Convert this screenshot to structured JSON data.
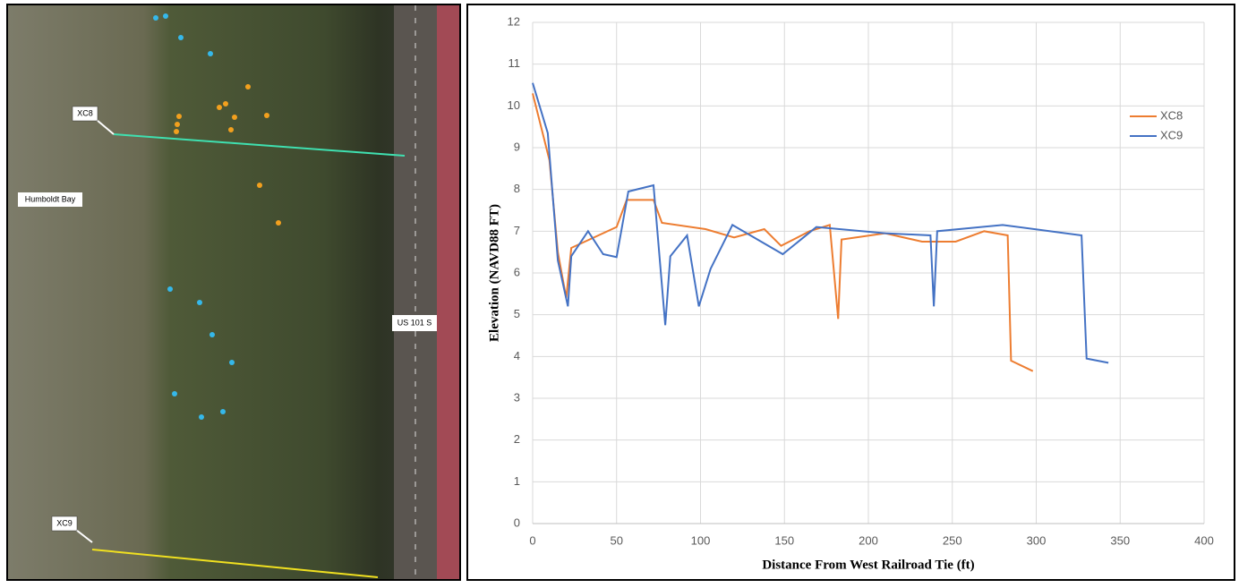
{
  "map": {
    "labels": [
      "XC8",
      "Humboldt Bay",
      "US 101 S",
      "XC9"
    ]
  },
  "chart_data": {
    "type": "line",
    "x_label": "Distance From West Railroad Tie (ft)",
    "y_label": "Elevation (NAVD88 FT)",
    "xlim": [
      0,
      400
    ],
    "xticks": [
      0,
      50,
      100,
      150,
      200,
      250,
      300,
      350,
      400
    ],
    "ylim": [
      0,
      12
    ],
    "yticks": [
      0,
      1,
      2,
      3,
      4,
      5,
      6,
      7,
      8,
      9,
      10,
      11,
      12
    ],
    "grid": true,
    "legend": "right",
    "series": [
      {
        "name": "XC8",
        "color": "#ed7d31",
        "x": [
          0,
          10,
          15,
          20,
          23,
          50,
          56,
          72,
          77,
          103,
          120,
          138,
          148,
          165,
          177,
          182,
          184,
          210,
          232,
          252,
          269,
          283,
          285,
          298
        ],
        "values": [
          10.3,
          8.7,
          6.5,
          5.4,
          6.6,
          7.1,
          7.75,
          7.75,
          7.2,
          7.05,
          6.85,
          7.05,
          6.65,
          7.0,
          7.15,
          4.9,
          6.8,
          6.95,
          6.75,
          6.75,
          7.0,
          6.9,
          3.9,
          3.65
        ]
      },
      {
        "name": "XC9",
        "color": "#4472c4",
        "x": [
          0,
          9,
          15,
          21,
          23,
          33,
          42,
          50,
          57,
          72,
          79,
          82,
          92,
          99,
          106,
          119,
          149,
          169,
          210,
          237,
          239,
          241,
          280,
          327,
          330,
          343
        ],
        "values": [
          10.55,
          9.35,
          6.3,
          5.2,
          6.4,
          7.0,
          6.45,
          6.38,
          7.95,
          8.1,
          4.75,
          6.4,
          6.9,
          5.2,
          6.1,
          7.15,
          6.45,
          7.1,
          6.95,
          6.9,
          5.2,
          7.0,
          7.15,
          6.9,
          3.95,
          3.85
        ]
      }
    ]
  }
}
